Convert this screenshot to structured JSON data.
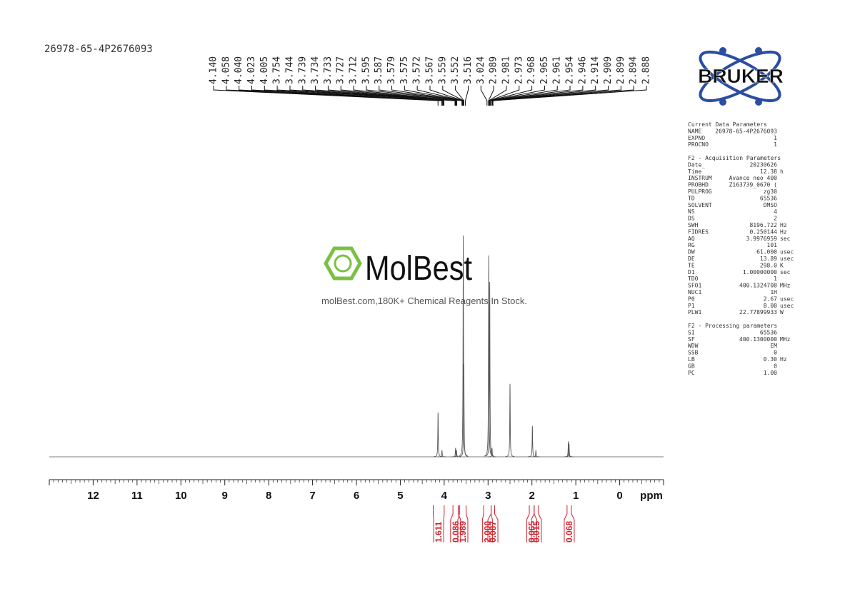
{
  "title": "26978-65-4P2676093",
  "logo": "BRUKER",
  "watermark": {
    "brand": "MolBest",
    "tagline": "molBest.com,180K+ Chemical Reagents In Stock."
  },
  "chart_data": {
    "type": "nmr",
    "x_label": "ppm",
    "xlim": [
      13,
      -1
    ],
    "xticks": [
      12,
      11,
      10,
      9,
      8,
      7,
      6,
      5,
      4,
      3,
      2,
      1,
      0
    ],
    "ylim": [
      0,
      100
    ],
    "color": "#555555",
    "peaks": {
      "x": [
        4.14,
        4.05,
        3.74,
        3.72,
        3.565,
        3.552,
        2.985,
        2.962,
        2.91,
        2.5,
        1.99,
        1.91,
        1.17,
        1.155
      ],
      "values": [
        20,
        3,
        4,
        3,
        100,
        42,
        91,
        79,
        4,
        33,
        14,
        3,
        7,
        6
      ]
    },
    "peak_labels": [
      {
        "value": 4.14,
        "label": "4.140"
      },
      {
        "value": 4.058,
        "label": "4.058"
      },
      {
        "value": 4.04,
        "label": "4.040"
      },
      {
        "value": 4.023,
        "label": "4.023"
      },
      {
        "value": 4.005,
        "label": "4.005"
      },
      {
        "value": 3.754,
        "label": "3.754"
      },
      {
        "value": 3.744,
        "label": "3.744"
      },
      {
        "value": 3.739,
        "label": "3.739"
      },
      {
        "value": 3.734,
        "label": "3.734"
      },
      {
        "value": 3.733,
        "label": "3.733"
      },
      {
        "value": 3.727,
        "label": "3.727"
      },
      {
        "value": 3.712,
        "label": "3.712"
      },
      {
        "value": 3.595,
        "label": "3.595"
      },
      {
        "value": 3.587,
        "label": "3.587"
      },
      {
        "value": 3.579,
        "label": "3.579"
      },
      {
        "value": 3.575,
        "label": "3.575"
      },
      {
        "value": 3.572,
        "label": "3.572"
      },
      {
        "value": 3.567,
        "label": "3.567"
      },
      {
        "value": 3.559,
        "label": "3.559"
      },
      {
        "value": 3.552,
        "label": "3.552"
      },
      {
        "value": 3.516,
        "label": "3.516"
      },
      {
        "value": 3.024,
        "label": "3.024"
      },
      {
        "value": 2.989,
        "label": "2.989"
      },
      {
        "value": 2.981,
        "label": "2.981"
      },
      {
        "value": 2.973,
        "label": "2.973"
      },
      {
        "value": 2.968,
        "label": "2.968"
      },
      {
        "value": 2.965,
        "label": "2.965"
      },
      {
        "value": 2.961,
        "label": "2.961"
      },
      {
        "value": 2.954,
        "label": "2.954"
      },
      {
        "value": 2.946,
        "label": "2.946"
      },
      {
        "value": 2.914,
        "label": "2.914"
      },
      {
        "value": 2.909,
        "label": "2.909"
      },
      {
        "value": 2.899,
        "label": "2.899"
      },
      {
        "value": 2.894,
        "label": "2.894"
      },
      {
        "value": 2.888,
        "label": "2.888"
      }
    ],
    "integrals": [
      {
        "from": 4.25,
        "to": 4.0,
        "value": 1.611,
        "label": "1.611"
      },
      {
        "from": 3.8,
        "to": 3.68,
        "value": 0.086,
        "label": "0.086"
      },
      {
        "from": 3.65,
        "to": 3.5,
        "value": 1.989,
        "label": "1.989"
      },
      {
        "from": 3.1,
        "to": 2.93,
        "value": 2,
        "label": "2.000"
      },
      {
        "from": 2.93,
        "to": 2.85,
        "value": 0.087,
        "label": "0.087"
      },
      {
        "from": 2.06,
        "to": 1.95,
        "value": 0.065,
        "label": "0.065"
      },
      {
        "from": 1.95,
        "to": 1.85,
        "value": 0.015,
        "label": "0.015"
      },
      {
        "from": 1.2,
        "to": 1.1,
        "value": 0.068,
        "label": "0.068"
      }
    ]
  },
  "parameters": [
    {
      "title": "Current Data Parameters",
      "rows": [
        [
          "NAME",
          "26978-65-4P2676093",
          ""
        ],
        [
          "EXPNO",
          "1",
          ""
        ],
        [
          "PROCNO",
          "1",
          ""
        ]
      ]
    },
    {
      "title": "F2 - Acquisition Parameters",
      "rows": [
        [
          "Date_",
          "20230626",
          ""
        ],
        [
          "Time",
          "12.38",
          "h"
        ],
        [
          "INSTRUM",
          "Avance neo 400",
          ""
        ],
        [
          "PROBHD",
          "Z163739_0670 (",
          ""
        ],
        [
          "PULPROG",
          "zg30",
          ""
        ],
        [
          "TD",
          "65536",
          ""
        ],
        [
          "SOLVENT",
          "DMSO",
          ""
        ],
        [
          "NS",
          "4",
          ""
        ],
        [
          "DS",
          "2",
          ""
        ],
        [
          "SWH",
          "8196.722",
          "Hz"
        ],
        [
          "FIDRES",
          "0.250144",
          "Hz"
        ],
        [
          "AQ",
          "3.9976959",
          "sec"
        ],
        [
          "RG",
          "101",
          ""
        ],
        [
          "DW",
          "61.000",
          "usec"
        ],
        [
          "DE",
          "13.89",
          "usec"
        ],
        [
          "TE",
          "298.0",
          "K"
        ],
        [
          "D1",
          "1.00000000",
          "sec"
        ],
        [
          "TD0",
          "1",
          ""
        ],
        [
          "SFO1",
          "400.1324708",
          "MHz"
        ],
        [
          "NUC1",
          "1H",
          ""
        ],
        [
          "P0",
          "2.67",
          "usec"
        ],
        [
          "P1",
          "8.00",
          "usec"
        ],
        [
          "PLW1",
          "22.77899933",
          "W"
        ]
      ]
    },
    {
      "title": "F2 - Processing parameters",
      "rows": [
        [
          "SI",
          "65536",
          ""
        ],
        [
          "SF",
          "400.1300000",
          "MHz"
        ],
        [
          "WDW",
          "EM",
          ""
        ],
        [
          "SSB",
          "0",
          ""
        ],
        [
          "LB",
          "0.30",
          "Hz"
        ],
        [
          "GB",
          "0",
          ""
        ],
        [
          "PC",
          "1.00",
          ""
        ]
      ]
    }
  ]
}
